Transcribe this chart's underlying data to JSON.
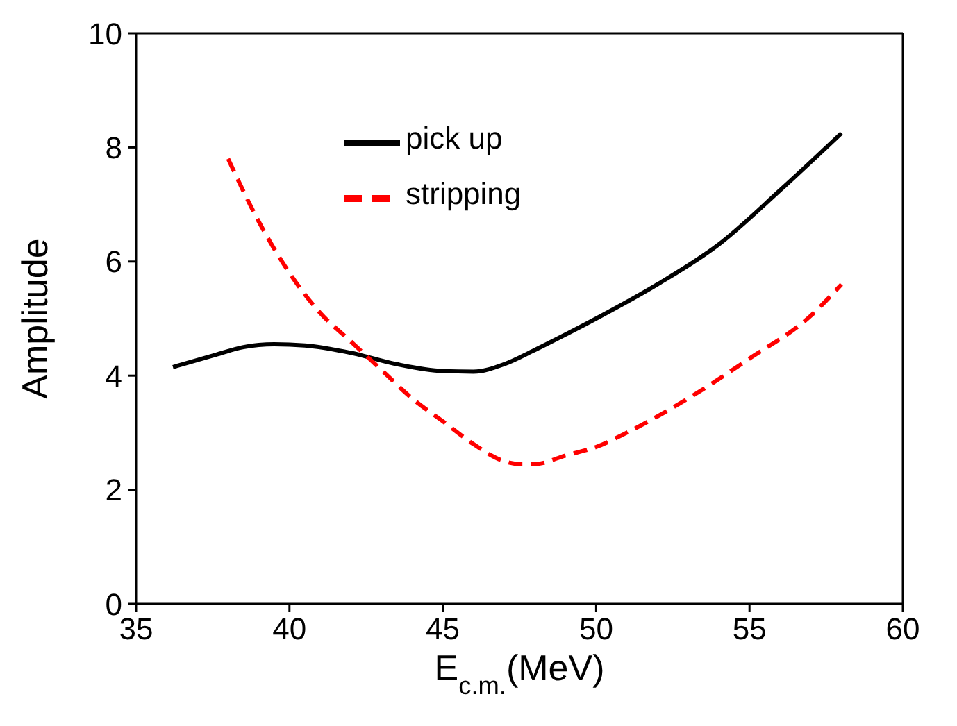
{
  "chart_data": {
    "type": "line",
    "xlabel": "E$_{c.m.}$(MeV)",
    "ylabel": "Amplitude",
    "xlim": [
      35,
      60
    ],
    "xticks": [
      35,
      40,
      45,
      50,
      55,
      60
    ],
    "ylim": [
      0,
      10
    ],
    "yticks": [
      0,
      2,
      4,
      6,
      8,
      10
    ],
    "grid": false,
    "legend": "top",
    "marker": "none",
    "series": [
      {
        "name": "pick up",
        "color": "#000000",
        "line_style": "solid",
        "x": [
          36.2,
          37.5,
          38.5,
          39.5,
          40.5,
          42,
          43.5,
          45,
          46,
          47,
          48,
          49,
          50,
          52,
          54,
          56,
          58
        ],
        "values": [
          4.15,
          4.35,
          4.5,
          4.55,
          4.53,
          4.4,
          4.2,
          4.08,
          4.07,
          4.2,
          4.45,
          4.72,
          5.0,
          5.6,
          6.3,
          7.25,
          8.25
        ]
      },
      {
        "name": "stripping",
        "color": "#ff0000",
        "line_style": "dashed",
        "x": [
          38,
          39,
          40,
          41,
          42,
          43,
          44,
          45,
          46,
          47,
          47.5,
          48,
          49,
          50,
          51,
          53,
          55,
          57,
          58
        ],
        "values": [
          7.8,
          6.7,
          5.8,
          5.1,
          4.6,
          4.1,
          3.6,
          3.2,
          2.8,
          2.5,
          2.45,
          2.45,
          2.6,
          2.75,
          3.0,
          3.6,
          4.3,
          5.05,
          5.6
        ]
      }
    ]
  }
}
